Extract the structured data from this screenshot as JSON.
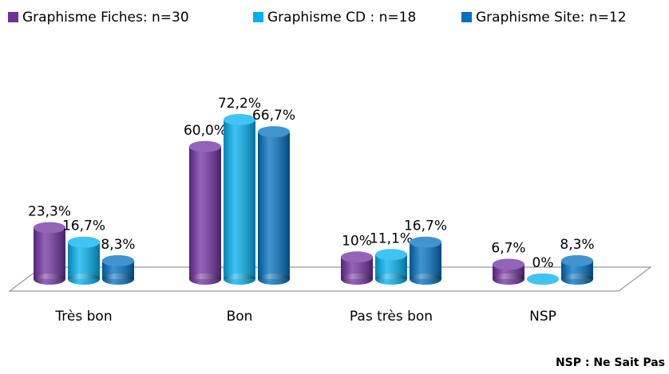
{
  "chart_data": {
    "type": "bar3d",
    "categories": [
      "Très bon",
      "Bon",
      "Pas très bon",
      "NSP"
    ],
    "series": [
      {
        "name": "Graphisme Fiches: n=30",
        "color": "#7030a0",
        "values": [
          23.3,
          60.0,
          10,
          6.7
        ],
        "value_labels": [
          "23,3%",
          "60,0%",
          "10%",
          "6,7%"
        ]
      },
      {
        "name": "Graphisme CD : n=18",
        "color": "#00b0f0",
        "values": [
          16.7,
          72.2,
          11.1,
          0
        ],
        "value_labels": [
          "16,7%",
          "72,2%",
          "11,1%",
          "0%"
        ]
      },
      {
        "name": "Graphisme Site: n=12",
        "color": "#0070c0",
        "values": [
          8.3,
          66.7,
          16.7,
          8.3
        ],
        "value_labels": [
          "8,3%",
          "66,7%",
          "16,7%",
          "8,3%"
        ]
      }
    ],
    "legend": "top",
    "annotation": "NSP : Ne Sait Pas"
  }
}
